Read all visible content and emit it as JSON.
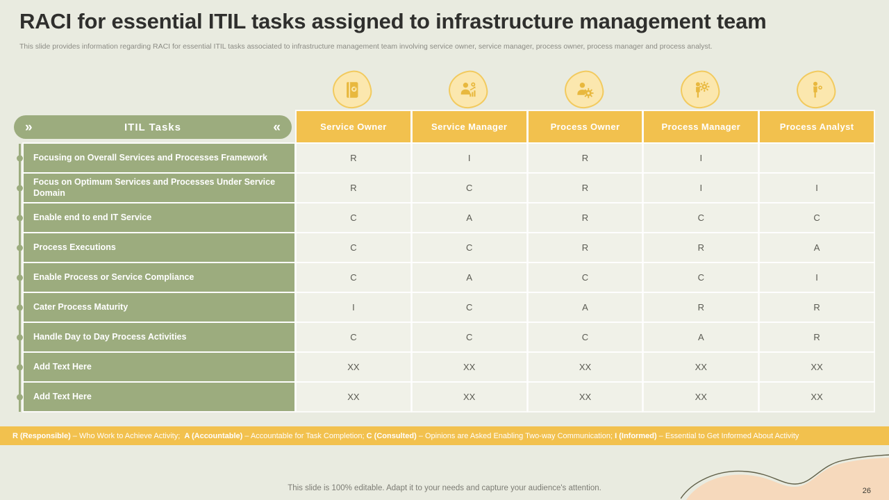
{
  "slide": {
    "title": "RACI for essential ITIL tasks assigned to infrastructure management team",
    "subtitle": "This slide provides information regarding RACI for essential ITIL  tasks associated to infrastructure management team involving service owner, service manager, process owner, process manager and process analyst.",
    "footer": "This slide is 100% editable. Adapt it to your needs and capture your audience's attention.",
    "page_number": "26"
  },
  "table": {
    "tasks_header": "ITIL Tasks",
    "pill": {
      "left_chevron": "»",
      "right_chevron": "«"
    },
    "columns": [
      {
        "label": "Service Owner",
        "icon": "notebook-icon"
      },
      {
        "label": "Service Manager",
        "icon": "person-coin-chart-icon"
      },
      {
        "label": "Process Owner",
        "icon": "person-gear-icon"
      },
      {
        "label": "Process Manager",
        "icon": "person-gears-icon"
      },
      {
        "label": "Process Analyst",
        "icon": "person-magnifier-icon"
      }
    ],
    "rows": [
      {
        "task": "Focusing on Overall Services and Processes Framework",
        "values": [
          "R",
          "I",
          "R",
          "I",
          ""
        ]
      },
      {
        "task": "Focus on Optimum Services and Processes Under Service Domain",
        "values": [
          "R",
          "C",
          "R",
          "I",
          "I"
        ]
      },
      {
        "task": "Enable end to end IT Service",
        "values": [
          "C",
          "A",
          "R",
          "C",
          "C"
        ]
      },
      {
        "task": "Process Executions",
        "values": [
          "C",
          "C",
          "R",
          "R",
          "A"
        ]
      },
      {
        "task": "Enable Process or Service Compliance",
        "values": [
          "C",
          "A",
          "C",
          "C",
          "I"
        ]
      },
      {
        "task": "Cater Process Maturity",
        "values": [
          "I",
          "C",
          "A",
          "R",
          "R"
        ]
      },
      {
        "task": "Handle Day to Day Process Activities",
        "values": [
          "C",
          "C",
          "C",
          "A",
          "R"
        ]
      },
      {
        "task": "Add Text Here",
        "values": [
          "XX",
          "XX",
          "XX",
          "XX",
          "XX"
        ]
      },
      {
        "task": "Add Text Here",
        "values": [
          "XX",
          "XX",
          "XX",
          "XX",
          "XX"
        ]
      }
    ]
  },
  "legend": {
    "items": [
      {
        "label": "R (Responsible)",
        "desc": "– Who Work to Achieve Activity;  "
      },
      {
        "label": "A (Accountable)",
        "desc": "– Accountable for Task Completion; "
      },
      {
        "label": "C (Consulted)",
        "desc": "– Opinions are Asked Enabling Two-way Communication; "
      },
      {
        "label": "I (Informed)",
        "desc": "– Essential to Get Informed About Activity"
      }
    ]
  },
  "colors": {
    "accent_yellow": "#f2c14e",
    "olive_green": "#9cac7e",
    "cell_bg": "#f0f1e8",
    "slide_bg": "#e9ebe0",
    "peach": "#f6d9bc",
    "outline_olive": "#5f5e46"
  }
}
